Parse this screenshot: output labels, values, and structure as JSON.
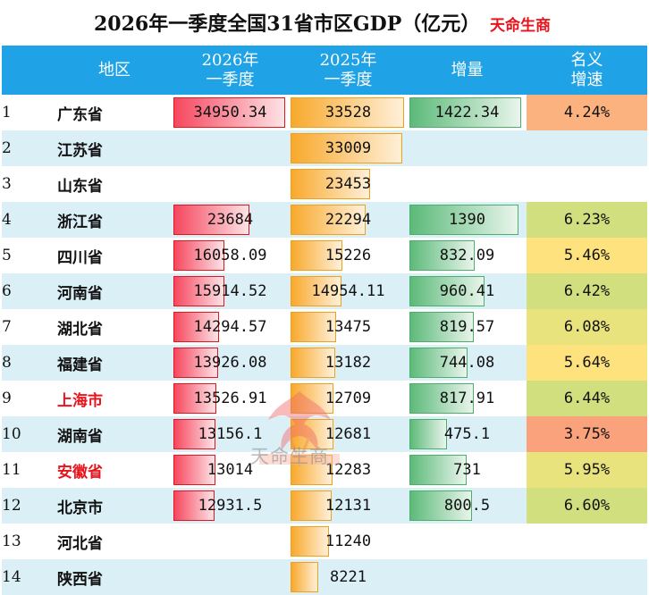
{
  "title": "2026年一季度全国31省市区GDP（亿元）",
  "brand": "天命生商",
  "watermark": "天命生商",
  "colors": {
    "header_bg": "#1fa3e6",
    "bar_2026": "#f6475f",
    "bar_2025": "#f8a92c",
    "bar_increase": "#5cba79",
    "highlight_region": "#e8141c"
  },
  "chart_data": {
    "type": "table",
    "columns": [
      "",
      "地区",
      "2026年\n一季度",
      "2025年\n一季度",
      "增量",
      "名义\n增速"
    ],
    "rows": [
      {
        "rank": "1",
        "region": "广东省",
        "gdp_2026": 34950.34,
        "gdp_2026_text": "34950.34",
        "gdp_2025": 33528,
        "gdp_2025_text": "33528",
        "increase": 1422.34,
        "increase_text": "1422.34",
        "growth": 4.24,
        "growth_text": "4.24%",
        "highlight": false
      },
      {
        "rank": "2",
        "region": "江苏省",
        "gdp_2026": null,
        "gdp_2026_text": "",
        "gdp_2025": 33009,
        "gdp_2025_text": "33009",
        "increase": null,
        "increase_text": "",
        "growth": null,
        "growth_text": "",
        "highlight": false
      },
      {
        "rank": "3",
        "region": "山东省",
        "gdp_2026": null,
        "gdp_2026_text": "",
        "gdp_2025": 23453,
        "gdp_2025_text": "23453",
        "increase": null,
        "increase_text": "",
        "growth": null,
        "growth_text": "",
        "highlight": false
      },
      {
        "rank": "4",
        "region": "浙江省",
        "gdp_2026": 23684,
        "gdp_2026_text": "23684",
        "gdp_2025": 22294,
        "gdp_2025_text": "22294",
        "increase": 1390,
        "increase_text": "1390",
        "growth": 6.23,
        "growth_text": "6.23%",
        "highlight": false
      },
      {
        "rank": "5",
        "region": "四川省",
        "gdp_2026": 16058.09,
        "gdp_2026_text": "16058.09",
        "gdp_2025": 15226,
        "gdp_2025_text": "15226",
        "increase": 832.09,
        "increase_text": "832.09",
        "growth": 5.46,
        "growth_text": "5.46%",
        "highlight": false
      },
      {
        "rank": "6",
        "region": "河南省",
        "gdp_2026": 15914.52,
        "gdp_2026_text": "15914.52",
        "gdp_2025": 14954.11,
        "gdp_2025_text": "14954.11",
        "increase": 960.41,
        "increase_text": "960.41",
        "growth": 6.42,
        "growth_text": "6.42%",
        "highlight": false
      },
      {
        "rank": "7",
        "region": "湖北省",
        "gdp_2026": 14294.57,
        "gdp_2026_text": "14294.57",
        "gdp_2025": 13475,
        "gdp_2025_text": "13475",
        "increase": 819.57,
        "increase_text": "819.57",
        "growth": 6.08,
        "growth_text": "6.08%",
        "highlight": false
      },
      {
        "rank": "8",
        "region": "福建省",
        "gdp_2026": 13926.08,
        "gdp_2026_text": "13926.08",
        "gdp_2025": 13182,
        "gdp_2025_text": "13182",
        "increase": 744.08,
        "increase_text": "744.08",
        "growth": 5.64,
        "growth_text": "5.64%",
        "highlight": false
      },
      {
        "rank": "9",
        "region": "上海市",
        "gdp_2026": 13526.91,
        "gdp_2026_text": "13526.91",
        "gdp_2025": 12709,
        "gdp_2025_text": "12709",
        "increase": 817.91,
        "increase_text": "817.91",
        "growth": 6.44,
        "growth_text": "6.44%",
        "highlight": true
      },
      {
        "rank": "10",
        "region": "湖南省",
        "gdp_2026": 13156.1,
        "gdp_2026_text": "13156.1",
        "gdp_2025": 12681,
        "gdp_2025_text": "12681",
        "increase": 475.1,
        "increase_text": "475.1",
        "growth": 3.75,
        "growth_text": "3.75%",
        "highlight": false
      },
      {
        "rank": "11",
        "region": "安徽省",
        "gdp_2026": 13014,
        "gdp_2026_text": "13014",
        "gdp_2025": 12283,
        "gdp_2025_text": "12283",
        "increase": 731,
        "increase_text": "731",
        "growth": 5.95,
        "growth_text": "5.95%",
        "highlight": true
      },
      {
        "rank": "12",
        "region": "北京市",
        "gdp_2026": 12931.5,
        "gdp_2026_text": "12931.5",
        "gdp_2025": 12131,
        "gdp_2025_text": "12131",
        "increase": 800.5,
        "increase_text": "800.5",
        "growth": 6.6,
        "growth_text": "6.60%",
        "highlight": false
      },
      {
        "rank": "13",
        "region": "河北省",
        "gdp_2026": null,
        "gdp_2026_text": "",
        "gdp_2025": 11240,
        "gdp_2025_text": "11240",
        "increase": null,
        "increase_text": "",
        "growth": null,
        "growth_text": "",
        "highlight": false
      },
      {
        "rank": "14",
        "region": "陕西省",
        "gdp_2026": null,
        "gdp_2026_text": "",
        "gdp_2025": 8221,
        "gdp_2025_text": "8221",
        "increase": null,
        "increase_text": "",
        "growth": null,
        "growth_text": "",
        "highlight": false
      }
    ]
  }
}
